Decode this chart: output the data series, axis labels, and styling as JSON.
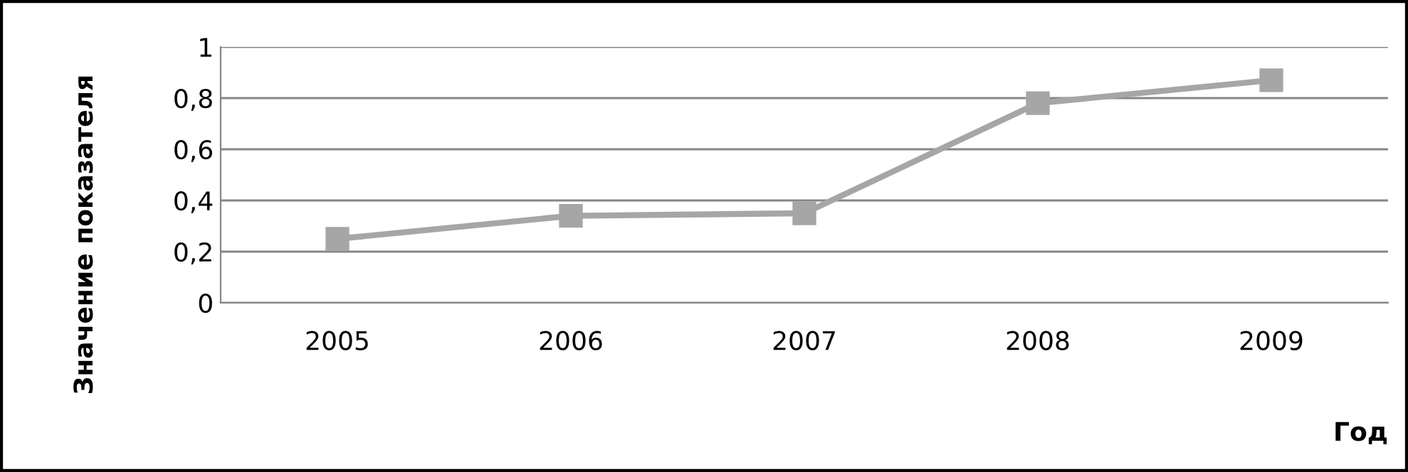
{
  "chart_data": {
    "type": "line",
    "xlabel": "Год",
    "ylabel": "Значение показателя",
    "categories": [
      "2005",
      "2006",
      "2007",
      "2008",
      "2009"
    ],
    "series": [
      {
        "color": "#a6a6a6",
        "values": [
          0.25,
          0.34,
          0.35,
          0.78,
          0.87
        ]
      }
    ],
    "ylim": [
      0,
      1
    ],
    "yticks": [
      0,
      {
        "value": 0.2,
        "label": "0,2"
      },
      {
        "value": 0.4,
        "label": "0,4"
      },
      {
        "value": 0.6,
        "label": "0,6"
      },
      {
        "value": 0.8,
        "label": "0,8"
      },
      1
    ],
    "grid": "y",
    "marker": "square",
    "line_style": "solid"
  }
}
